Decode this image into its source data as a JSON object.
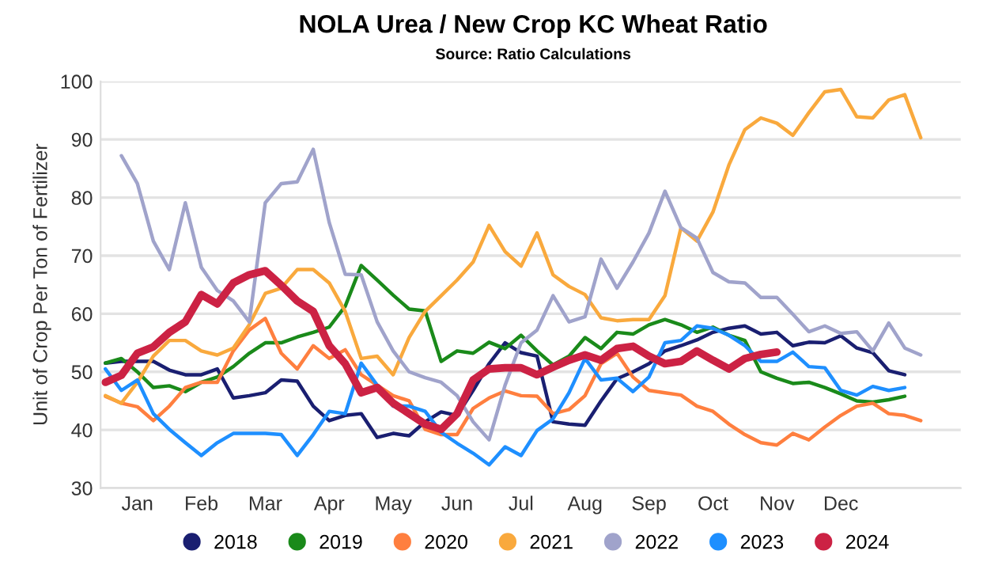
{
  "chart_data": {
    "type": "line",
    "title": "NOLA Urea / New Crop KC Wheat Ratio",
    "subtitle": "Source: Ratio Calculations",
    "ylabel": "Unit of Crop Per Ton of Fertilizer",
    "categories": [
      null,
      null,
      "Jan",
      null,
      null,
      null,
      "Feb",
      null,
      null,
      null,
      "Mar",
      null,
      null,
      null,
      "Apr",
      null,
      null,
      null,
      "May",
      null,
      null,
      null,
      "Jun",
      null,
      null,
      null,
      "Jul",
      null,
      null,
      null,
      "Aug",
      null,
      null,
      null,
      "Sep",
      null,
      null,
      null,
      "Oct",
      null,
      null,
      null,
      "Nov",
      null,
      null,
      null,
      "Dec",
      null,
      null,
      null,
      null,
      null
    ],
    "ylim": [
      30,
      100
    ],
    "yticks": [
      30,
      40,
      50,
      60,
      70,
      80,
      90,
      100
    ],
    "grid": "y",
    "legend": "bottom",
    "marker": "none",
    "line_style": "solid",
    "series": [
      {
        "name": "2018",
        "color": "#1a1f71",
        "values": [
          51.5,
          51.8,
          51.8,
          51.8,
          50.3,
          49.5,
          49.5,
          50.5,
          45.5,
          45.9,
          46.4,
          48.6,
          48.4,
          44.1,
          41.6,
          42.5,
          42.8,
          38.7,
          39.4,
          39,
          41.4,
          43.1,
          42.5,
          46.8,
          51.4,
          55,
          53.3,
          52.7,
          41.4,
          41,
          40.8,
          45,
          48.8,
          50,
          51.4,
          53.6,
          54.5,
          55.5,
          56.8,
          57.5,
          57.9,
          56.5,
          56.8,
          54.5,
          55.1,
          55,
          56.2,
          54.1,
          53.3,
          50.2,
          49.5,
          null
        ]
      },
      {
        "name": "2019",
        "color": "#1a8a1a",
        "values": [
          51.5,
          52.3,
          50,
          47.3,
          47.6,
          46.6,
          48.2,
          49.1,
          50.9,
          53.2,
          55,
          55,
          56,
          56.8,
          57.7,
          61.3,
          68.3,
          65.8,
          63.2,
          60.8,
          60.5,
          51.8,
          53.6,
          53.2,
          55.1,
          54,
          56.3,
          53.6,
          51.2,
          52.7,
          55.9,
          54,
          56.8,
          56.5,
          58.1,
          59,
          58.1,
          56.8,
          57.7,
          56.3,
          55.4,
          50,
          48.9,
          48,
          48.2,
          47.3,
          46.2,
          45,
          44.8,
          45.2,
          45.8,
          null
        ]
      },
      {
        "name": "2020",
        "color": "#ff7f3f",
        "values": [
          45.8,
          44.6,
          44,
          41.6,
          44.1,
          47.3,
          48.2,
          48.2,
          53.6,
          57.2,
          59.2,
          53.2,
          50.5,
          54.5,
          52.3,
          53.8,
          49.5,
          47.7,
          45.9,
          45,
          40.1,
          39.2,
          39.2,
          43.7,
          45.5,
          46.7,
          45.9,
          45.8,
          42.8,
          43.5,
          45.9,
          51.4,
          53.2,
          49.1,
          46.8,
          46.4,
          46,
          44.1,
          43.2,
          41,
          39.2,
          37.8,
          37.4,
          39.4,
          38.3,
          40.5,
          42.5,
          44.1,
          44.6,
          42.8,
          42.5,
          41.6
        ]
      },
      {
        "name": "2021",
        "color": "#f9a93d",
        "values": [
          45.9,
          44.6,
          48.2,
          52.7,
          55.4,
          55.4,
          53.6,
          52.9,
          54.1,
          58.1,
          63.5,
          64.4,
          67.6,
          67.6,
          65.3,
          60.4,
          52.3,
          52.7,
          49.5,
          55.9,
          60.4,
          63.1,
          65.8,
          68.9,
          75.2,
          70.7,
          68.2,
          73.9,
          66.7,
          64.7,
          63.3,
          59.3,
          58.8,
          59,
          59,
          63.1,
          74.8,
          72.5,
          77.5,
          85.6,
          91.7,
          93.7,
          92.8,
          90.7,
          94.6,
          98.2,
          98.6,
          93.9,
          93.7,
          96.8,
          97.7,
          90.3
        ]
      },
      {
        "name": "2022",
        "color": "#a0a3cb",
        "values": [
          null,
          87.2,
          82.4,
          72.5,
          67.6,
          79.1,
          68,
          64,
          62.2,
          58.6,
          79.1,
          82.4,
          82.7,
          88.3,
          75.7,
          66.8,
          66.7,
          58.6,
          53.6,
          50,
          49,
          48.2,
          45.9,
          41.4,
          38.3,
          47.7,
          55,
          57.2,
          63.1,
          58.6,
          59.5,
          69.4,
          64.4,
          68.9,
          73.9,
          81.1,
          74.8,
          73,
          67.1,
          65.5,
          65.3,
          62.8,
          62.8,
          59.9,
          56.9,
          57.9,
          56.6,
          56.9,
          53.6,
          58.4,
          54.1,
          52.9
        ]
      },
      {
        "name": "2023",
        "color": "#1e8fff",
        "values": [
          50.5,
          46.8,
          48.6,
          42.8,
          40.1,
          37.8,
          35.6,
          37.8,
          39.4,
          39.4,
          39.4,
          39.2,
          35.6,
          39.2,
          43.2,
          42.8,
          51.5,
          47.7,
          44.1,
          44.1,
          43.2,
          39.6,
          37.7,
          36,
          34,
          37.1,
          35.6,
          39.9,
          41.9,
          46.4,
          52.3,
          48.6,
          48.9,
          46.6,
          49.1,
          55,
          55.4,
          57.9,
          57.5,
          56.3,
          54.5,
          51.8,
          51.8,
          53.4,
          50.9,
          50.7,
          46.8,
          46,
          47.5,
          46.8,
          47.3,
          null
        ]
      },
      {
        "name": "2024",
        "color": "#cc2244",
        "values": [
          48.2,
          49.4,
          53.2,
          54.3,
          56.8,
          58.6,
          63.3,
          61.7,
          65.3,
          66.7,
          67.4,
          64.9,
          62.2,
          60.4,
          54.5,
          51.4,
          46.4,
          47.3,
          44.6,
          42.8,
          41,
          40.1,
          42.8,
          48.6,
          50.5,
          50.7,
          50.7,
          49.5,
          50.8,
          52,
          52.9,
          52,
          54,
          54.4,
          52.7,
          51.4,
          51.8,
          53.6,
          52,
          50.5,
          52.3,
          53,
          53.4,
          null,
          null,
          null,
          null,
          null,
          null,
          null,
          null,
          null
        ]
      }
    ]
  }
}
